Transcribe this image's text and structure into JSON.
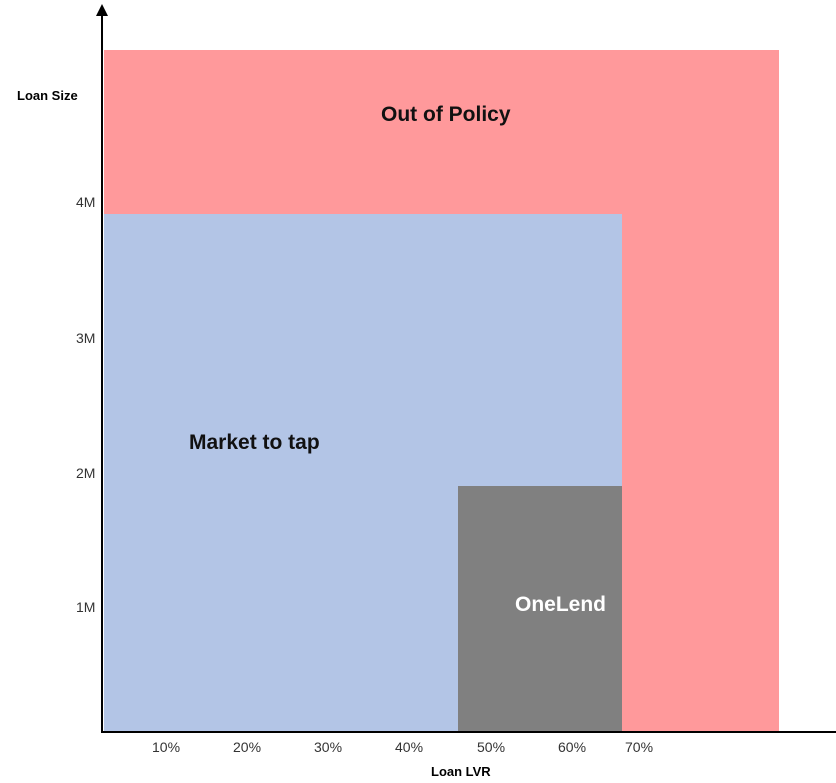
{
  "colors": {
    "out_of_policy": "#ff999b",
    "market_to_tap": "#b3c5e6",
    "onelend": "#808080"
  },
  "regions": {
    "out_of_policy": "Out of Policy",
    "market_to_tap": "Market to tap",
    "onelend": "OneLend"
  },
  "axes": {
    "y_title": "Loan Size",
    "x_title": "Loan LVR",
    "y_ticks": [
      "4M",
      "3M",
      "2M",
      "1M"
    ],
    "x_ticks": [
      "10%",
      "20%",
      "30%",
      "40%",
      "50%",
      "60%",
      "70%"
    ]
  }
}
